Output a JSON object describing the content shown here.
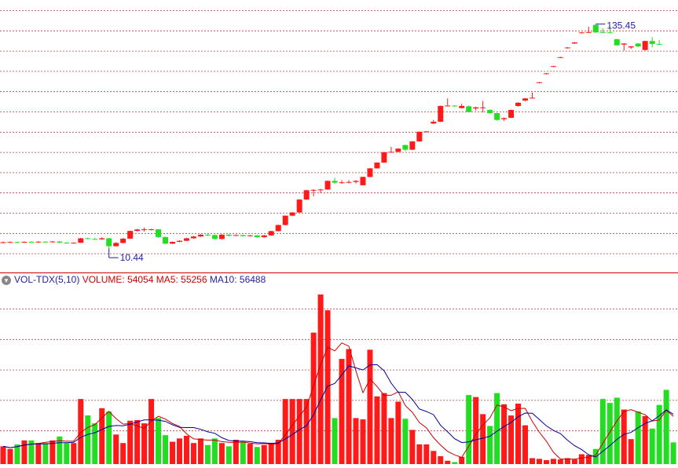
{
  "colors": {
    "up": "#ff1a1a",
    "down": "#22dd22",
    "ma5": "#cc0000",
    "ma10": "#000099",
    "grid": "#b04040",
    "text_blue": "#1f1f9e"
  },
  "indicator": {
    "name": "VOL-TDX(5,10)",
    "volume_label": "VOLUME:",
    "volume_value": "54054",
    "ma5_label": "MA5:",
    "ma5_value": "55256",
    "ma10_label": "MA10:",
    "ma10_value": "56488"
  },
  "chart_data": [
    {
      "type": "candlestick",
      "price_low_label": "10.44",
      "price_high_label": "135.45",
      "y_range": [
        0,
        148
      ],
      "grid": true,
      "candles": [
        {
          "o": 13.5,
          "c": 13.8,
          "h": 14.2,
          "l": 13.2
        },
        {
          "o": 13.8,
          "c": 13.9,
          "h": 14.3,
          "l": 13.5
        },
        {
          "o": 13.9,
          "c": 13.7,
          "h": 14.2,
          "l": 13.4
        },
        {
          "o": 13.7,
          "c": 14.0,
          "h": 14.3,
          "l": 13.5
        },
        {
          "o": 14.0,
          "c": 13.8,
          "h": 14.3,
          "l": 13.6
        },
        {
          "o": 13.8,
          "c": 14.1,
          "h": 14.4,
          "l": 13.6
        },
        {
          "o": 14.1,
          "c": 13.9,
          "h": 14.4,
          "l": 13.7
        },
        {
          "o": 13.9,
          "c": 14.2,
          "h": 14.5,
          "l": 13.7
        },
        {
          "o": 14.2,
          "c": 13.6,
          "h": 14.5,
          "l": 13.3
        },
        {
          "o": 13.6,
          "c": 13.3,
          "h": 13.8,
          "l": 13.0
        },
        {
          "o": 13.3,
          "c": 13.5,
          "h": 13.8,
          "l": 13.1
        },
        {
          "o": 13.5,
          "c": 16.0,
          "h": 16.3,
          "l": 13.4
        },
        {
          "o": 16.0,
          "c": 15.6,
          "h": 16.4,
          "l": 15.4
        },
        {
          "o": 15.6,
          "c": 15.4,
          "h": 16.3,
          "l": 15.2
        },
        {
          "o": 15.4,
          "c": 16.0,
          "h": 16.5,
          "l": 15.2
        },
        {
          "o": 16.0,
          "c": 11.6,
          "h": 16.2,
          "l": 10.44
        },
        {
          "o": 11.6,
          "c": 13.4,
          "h": 13.8,
          "l": 11.4
        },
        {
          "o": 13.4,
          "c": 15.8,
          "h": 16.1,
          "l": 13.2
        },
        {
          "o": 15.8,
          "c": 20.1,
          "h": 20.3,
          "l": 15.6
        },
        {
          "o": 20.1,
          "c": 20.9,
          "h": 21.2,
          "l": 19.8
        },
        {
          "o": 20.9,
          "c": 21.0,
          "h": 22.0,
          "l": 19.8
        },
        {
          "o": 20.6,
          "c": 21.0,
          "h": 21.3,
          "l": 20.4
        },
        {
          "o": 21.0,
          "c": 16.7,
          "h": 21.2,
          "l": 16.3
        },
        {
          "o": 16.7,
          "c": 13.0,
          "h": 16.9,
          "l": 12.8
        },
        {
          "o": 13.0,
          "c": 14.0,
          "h": 14.2,
          "l": 12.8
        },
        {
          "o": 14.0,
          "c": 14.6,
          "h": 14.9,
          "l": 13.8
        },
        {
          "o": 14.6,
          "c": 16.0,
          "h": 16.3,
          "l": 14.4
        },
        {
          "o": 16.0,
          "c": 17.0,
          "h": 17.3,
          "l": 15.8
        },
        {
          "o": 17.0,
          "c": 18.0,
          "h": 18.3,
          "l": 16.8
        },
        {
          "o": 18.0,
          "c": 17.8,
          "h": 18.4,
          "l": 17.4
        },
        {
          "o": 17.8,
          "c": 15.6,
          "h": 18.0,
          "l": 15.4
        },
        {
          "o": 15.6,
          "c": 18.0,
          "h": 18.3,
          "l": 15.4
        },
        {
          "o": 18.0,
          "c": 17.4,
          "h": 18.3,
          "l": 17.1
        },
        {
          "o": 17.4,
          "c": 17.8,
          "h": 18.1,
          "l": 17.2
        },
        {
          "o": 17.8,
          "c": 17.2,
          "h": 18.0,
          "l": 17.0
        },
        {
          "o": 17.2,
          "c": 17.6,
          "h": 17.9,
          "l": 17.0
        },
        {
          "o": 17.6,
          "c": 16.6,
          "h": 17.8,
          "l": 16.4
        },
        {
          "o": 16.6,
          "c": 17.6,
          "h": 17.9,
          "l": 16.4
        },
        {
          "o": 17.6,
          "c": 20.0,
          "h": 20.2,
          "l": 17.4
        },
        {
          "o": 20.0,
          "c": 23.4,
          "h": 23.6,
          "l": 19.8
        },
        {
          "o": 23.4,
          "c": 28.6,
          "h": 28.8,
          "l": 23.2
        },
        {
          "o": 28.6,
          "c": 30.4,
          "h": 30.6,
          "l": 28.4
        },
        {
          "o": 30.4,
          "c": 37.6,
          "h": 37.8,
          "l": 30.2
        },
        {
          "o": 37.6,
          "c": 42.8,
          "h": 43.0,
          "l": 37.4
        },
        {
          "o": 42.8,
          "c": 43.0,
          "h": 43.4,
          "l": 39.4
        },
        {
          "o": 43.0,
          "c": 43.2,
          "h": 43.6,
          "l": 41.2
        },
        {
          "o": 43.2,
          "c": 48.0,
          "h": 48.2,
          "l": 43.0
        },
        {
          "o": 48.0,
          "c": 47.0,
          "h": 49.8,
          "l": 46.4
        },
        {
          "o": 46.8,
          "c": 47.2,
          "h": 48.4,
          "l": 46.4
        },
        {
          "o": 47.2,
          "c": 47.4,
          "h": 48.4,
          "l": 46.6
        },
        {
          "o": 47.4,
          "c": 48.0,
          "h": 48.4,
          "l": 46.6
        },
        {
          "o": 45.6,
          "c": 50.2,
          "h": 50.4,
          "l": 45.4
        },
        {
          "o": 50.2,
          "c": 55.0,
          "h": 55.2,
          "l": 50.0
        },
        {
          "o": 55.0,
          "c": 58.2,
          "h": 58.4,
          "l": 54.8
        },
        {
          "o": 58.2,
          "c": 64.0,
          "h": 64.2,
          "l": 58.0
        },
        {
          "o": 64.0,
          "c": 64.2,
          "h": 67.0,
          "l": 63.8
        },
        {
          "o": 64.2,
          "c": 66.0,
          "h": 66.2,
          "l": 64.0
        },
        {
          "o": 68.0,
          "c": 65.4,
          "h": 68.2,
          "l": 64.6
        },
        {
          "o": 65.4,
          "c": 70.0,
          "h": 70.2,
          "l": 65.2
        },
        {
          "o": 70.0,
          "c": 75.4,
          "h": 75.6,
          "l": 69.8
        },
        {
          "o": 75.4,
          "c": 75.6,
          "h": 75.8,
          "l": 75.2
        },
        {
          "o": 80.0,
          "c": 81.0,
          "h": 82.0,
          "l": 79.8
        },
        {
          "o": 81.0,
          "c": 89.8,
          "h": 90.0,
          "l": 80.8
        },
        {
          "o": 89.8,
          "c": 90.0,
          "h": 94.0,
          "l": 89.6
        },
        {
          "o": 90.0,
          "c": 89.6,
          "h": 90.2,
          "l": 89.4
        },
        {
          "o": 88.6,
          "c": 89.8,
          "h": 91.0,
          "l": 88.4
        },
        {
          "o": 89.6,
          "c": 86.4,
          "h": 90.0,
          "l": 86.2
        },
        {
          "o": 88.4,
          "c": 89.0,
          "h": 89.4,
          "l": 87.2
        },
        {
          "o": 88.8,
          "c": 89.0,
          "h": 92.6,
          "l": 86.2
        },
        {
          "o": 87.6,
          "c": 85.8,
          "h": 87.8,
          "l": 85.4
        },
        {
          "o": 85.8,
          "c": 82.0,
          "h": 86.0,
          "l": 81.6
        },
        {
          "o": 82.4,
          "c": 83.0,
          "h": 83.4,
          "l": 81.4
        },
        {
          "o": 83.2,
          "c": 87.6,
          "h": 87.8,
          "l": 83.0
        },
        {
          "o": 89.8,
          "c": 91.6,
          "h": 91.8,
          "l": 89.4
        },
        {
          "o": 92.8,
          "c": 94.0,
          "h": 94.2,
          "l": 92.4
        },
        {
          "o": 94.2,
          "c": 94.4,
          "h": 97.2,
          "l": 94.0
        },
        {
          "o": 102.6,
          "c": 103.0,
          "h": 103.2,
          "l": 102.4
        },
        {
          "o": 107.6,
          "c": 108.0,
          "h": 108.2,
          "l": 107.4
        },
        {
          "o": 111.6,
          "c": 112.0,
          "h": 112.2,
          "l": 111.4
        },
        {
          "o": 116.6,
          "c": 117.0,
          "h": 117.2,
          "l": 116.4
        },
        {
          "o": 122.0,
          "c": 122.4,
          "h": 122.6,
          "l": 121.8
        },
        {
          "o": 124.6,
          "c": 125.2,
          "h": 125.4,
          "l": 124.4
        },
        {
          "o": 130.4,
          "c": 130.8,
          "h": 131.0,
          "l": 130.2
        },
        {
          "o": 130.8,
          "c": 131.0,
          "h": 134.0,
          "l": 130.6
        },
        {
          "o": 135.0,
          "c": 130.8,
          "h": 135.45,
          "l": 130.6
        },
        {
          "o": 131.0,
          "c": 130.8,
          "h": 133.2,
          "l": 130.6
        },
        {
          "o": 130.8,
          "c": 130.6,
          "h": 134.2,
          "l": 130.4
        },
        {
          "o": 127.0,
          "c": 123.6,
          "h": 127.2,
          "l": 123.4
        },
        {
          "o": 124.0,
          "c": 124.6,
          "h": 124.8,
          "l": 120.6
        },
        {
          "o": 122.4,
          "c": 123.0,
          "h": 123.2,
          "l": 121.6
        },
        {
          "o": 124.6,
          "c": 123.0,
          "h": 124.8,
          "l": 122.6
        },
        {
          "o": 121.0,
          "c": 126.0,
          "h": 126.2,
          "l": 120.8
        },
        {
          "o": 126.0,
          "c": 124.4,
          "h": 128.2,
          "l": 122.4
        },
        {
          "o": 124.4,
          "c": 124.2,
          "h": 126.6,
          "l": 123.8
        }
      ]
    },
    {
      "type": "bar",
      "title": "VOL-TDX(5,10)",
      "series": [
        {
          "name": "VOLUME",
          "values": [
            27,
            23,
            30,
            36,
            36,
            32,
            32,
            36,
            42,
            32,
            32,
            99,
            74,
            62,
            85,
            80,
            45,
            32,
            66,
            67,
            62,
            99,
            70,
            44,
            34,
            39,
            43,
            32,
            39,
            29,
            39,
            32,
            27,
            37,
            33,
            31,
            26,
            29,
            32,
            37,
            99,
            99,
            99,
            99,
            200,
            258,
            234,
            70,
            160,
            175,
            70,
            68,
            174,
            103,
            108,
            70,
            95,
            69,
            52,
            30,
            30,
            20,
            12,
            5,
            3,
            11,
            105,
            102,
            76,
            58,
            108,
            91,
            74,
            92,
            59,
            9,
            8,
            6,
            8,
            7,
            9,
            7,
            15,
            14,
            23,
            99,
            93,
            101,
            83,
            38,
            80,
            73,
            54,
            90,
            113,
            33
          ]
        },
        {
          "name": "MA5"
        },
        {
          "name": "MA10"
        }
      ],
      "grid": true
    }
  ]
}
